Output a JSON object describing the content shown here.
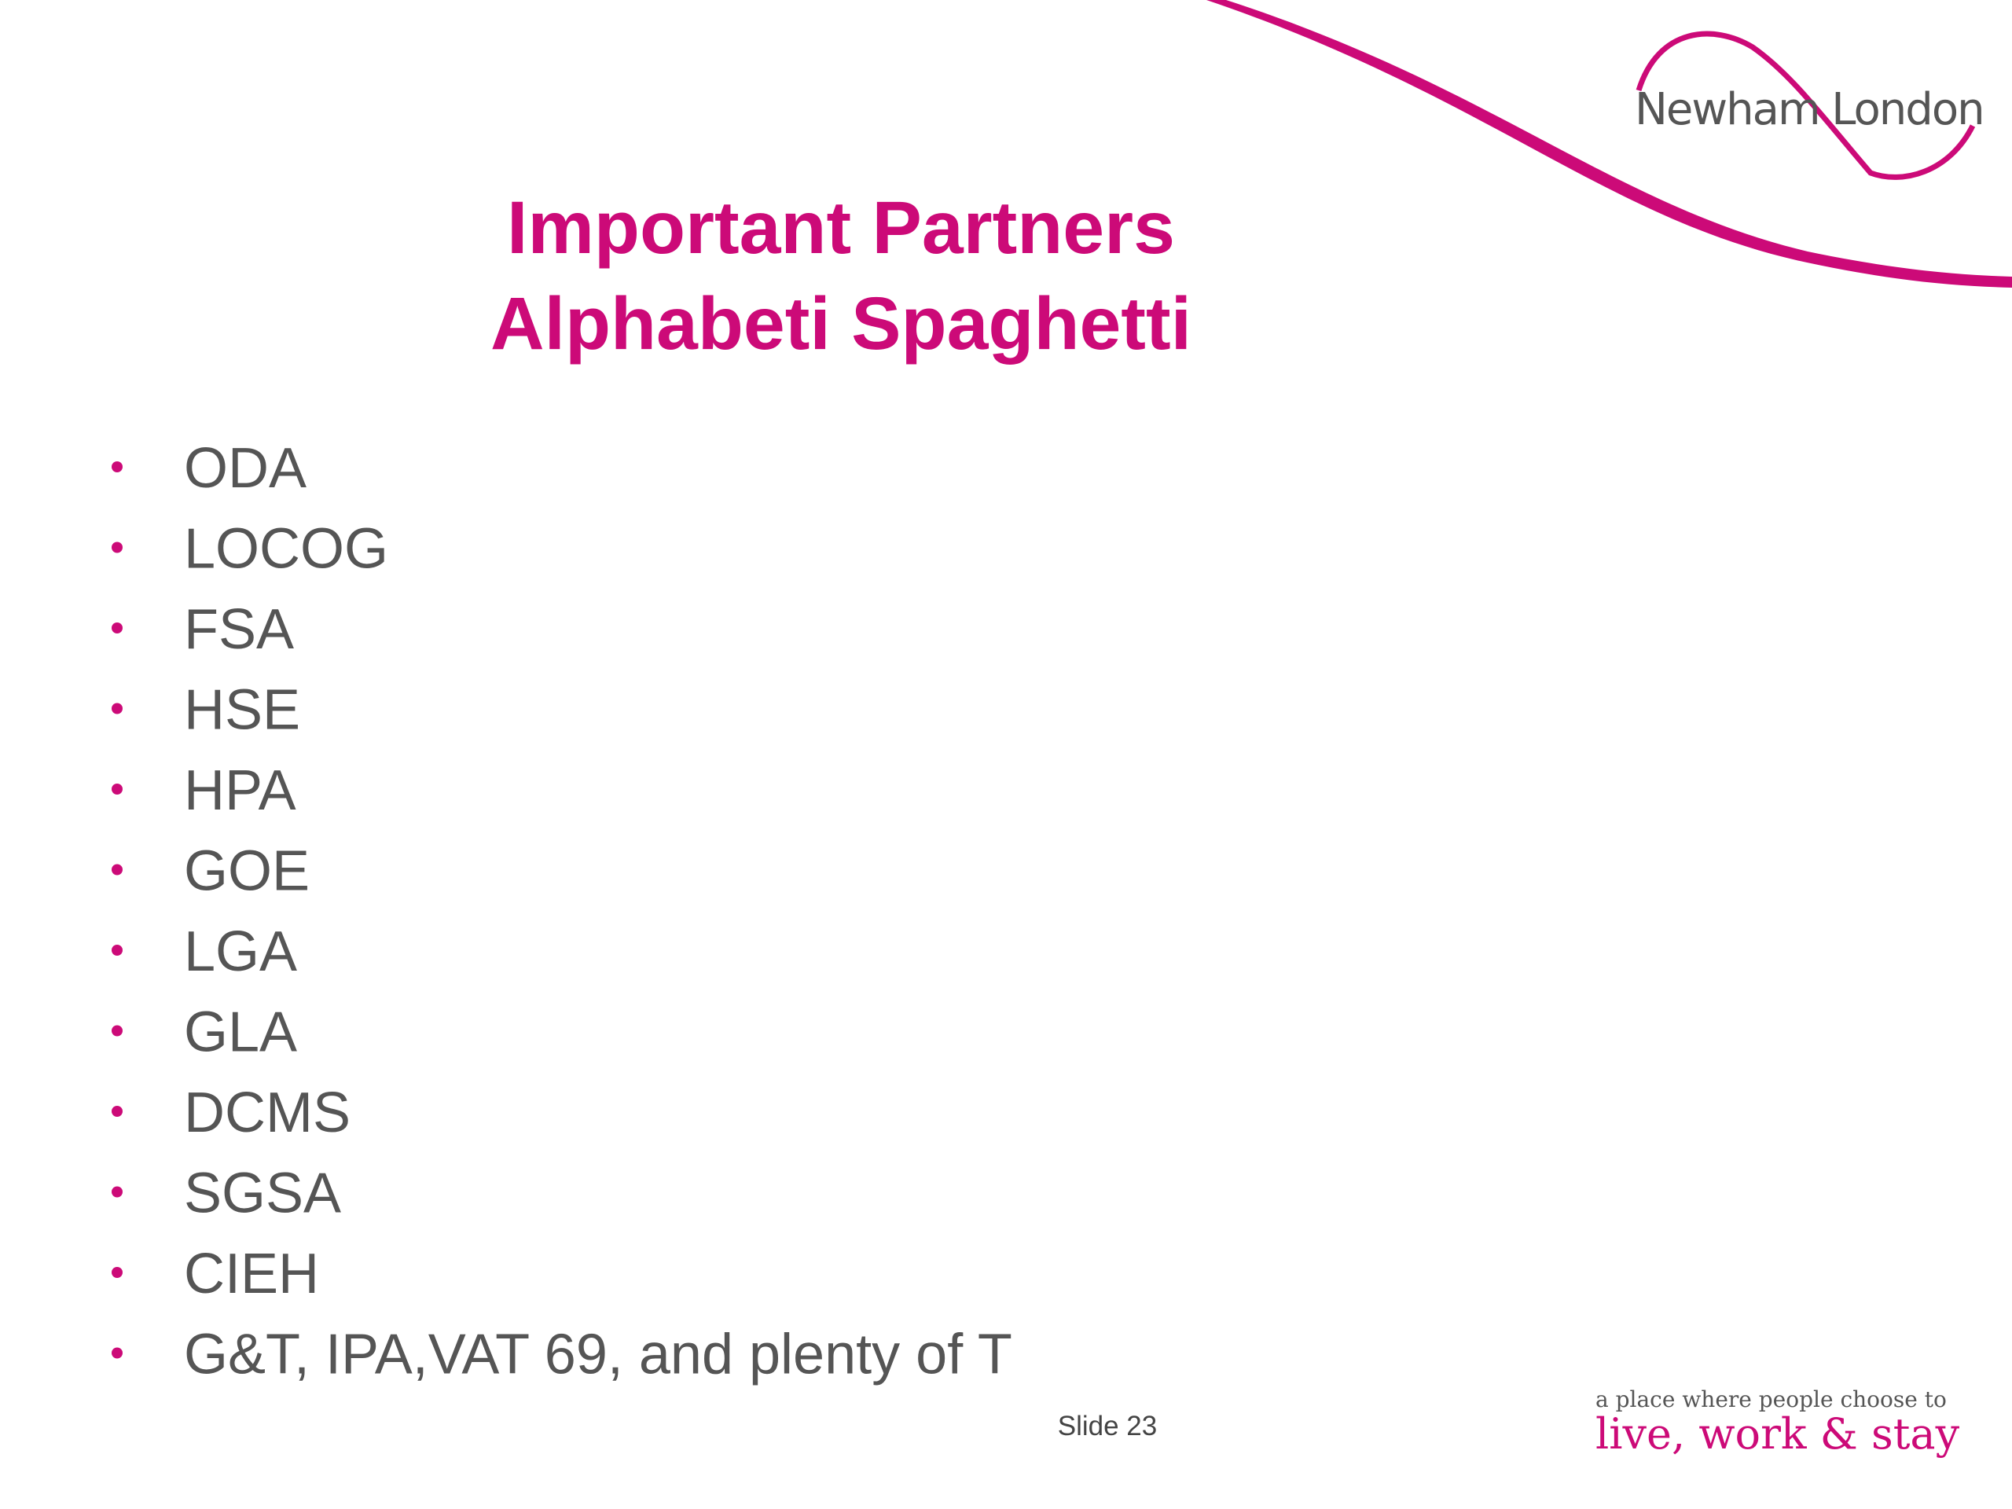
{
  "header": {
    "title_lines": [
      "Important Partners",
      "Alphabeti Spaghetti"
    ],
    "logo": "Newham London"
  },
  "bullets": [
    "ODA",
    "LOCOG",
    "FSA",
    "HSE",
    "HPA",
    "GOE",
    "LGA",
    "GLA",
    "DCMS",
    "SGSA",
    "CIEH",
    "G&T, IPA,VAT 69, and plenty of T"
  ],
  "footer": {
    "slide": "Slide 23",
    "tagline": "a place where people choose to",
    "slogan": "live, work & stay"
  }
}
